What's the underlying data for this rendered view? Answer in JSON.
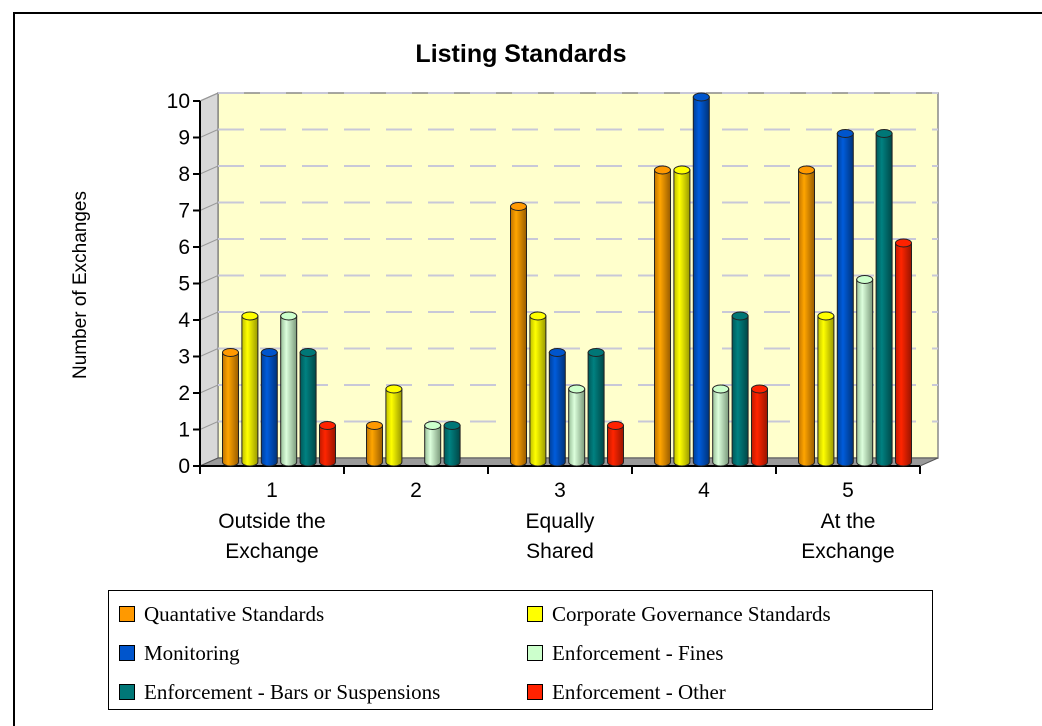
{
  "chart_data": {
    "type": "bar",
    "title": "Listing Standards",
    "ylabel": "Number of Exchanges",
    "xlabel": "",
    "ylim": [
      0,
      10
    ],
    "yticks": [
      "0",
      "1",
      "2",
      "3",
      "4",
      "5",
      "6",
      "7",
      "8",
      "9",
      "10"
    ],
    "grid": true,
    "legend_position": "bottom",
    "categories": [
      {
        "number": "1",
        "line1": "Outside the",
        "line2": "Exchange"
      },
      {
        "number": "2",
        "line1": "",
        "line2": ""
      },
      {
        "number": "3",
        "line1": "Equally",
        "line2": "Shared"
      },
      {
        "number": "4",
        "line1": "",
        "line2": ""
      },
      {
        "number": "5",
        "line1": "At the",
        "line2": "Exchange"
      }
    ],
    "series": [
      {
        "name": "Quantative Standards",
        "color": "#ff9900",
        "values": [
          3,
          1,
          7,
          8,
          8
        ]
      },
      {
        "name": "Corporate Governance Standards",
        "color": "#ffff00",
        "values": [
          4,
          2,
          4,
          8,
          4
        ]
      },
      {
        "name": "Monitoring",
        "color": "#0055cc",
        "values": [
          3,
          0,
          3,
          10,
          9
        ]
      },
      {
        "name": "Enforcement - Fines",
        "color": "#ccffcc",
        "values": [
          4,
          1,
          2,
          2,
          5
        ]
      },
      {
        "name": "Enforcement - Bars or Suspensions",
        "color": "#007777",
        "values": [
          3,
          1,
          3,
          4,
          9
        ]
      },
      {
        "name": "Enforcement - Other",
        "color": "#ff2200",
        "values": [
          1,
          0,
          1,
          2,
          6
        ]
      }
    ],
    "plot_background": "#ffffcc"
  }
}
